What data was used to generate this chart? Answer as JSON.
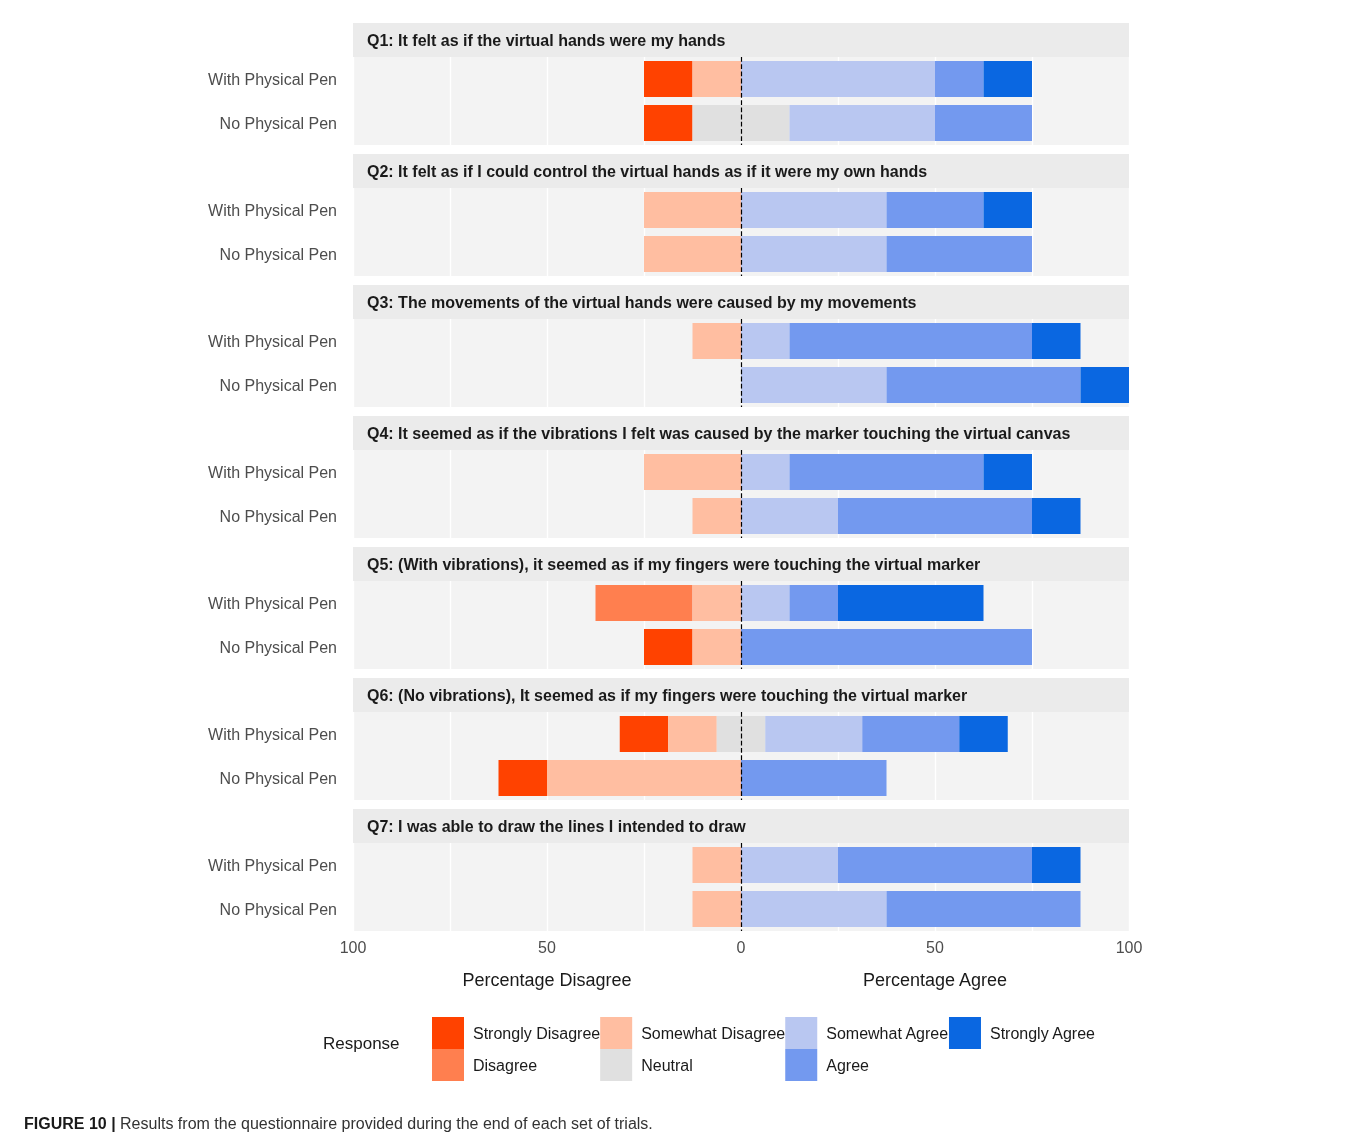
{
  "chart_data": [
    {
      "type": "bar",
      "orientation": "horizontal",
      "title": "Q1: It felt as if the virtual hands were my hands",
      "categories": [
        "With Physical Pen",
        "No Physical Pen"
      ],
      "xlim": [
        -100,
        100
      ],
      "xticks": [
        {
          "value": -100,
          "label": null
        },
        {
          "value": -75,
          "label": null
        },
        {
          "value": -50,
          "label": null
        },
        {
          "value": -25,
          "label": null
        },
        {
          "value": 0,
          "label": null
        },
        {
          "value": 25,
          "label": null
        },
        {
          "value": 50,
          "label": null
        },
        {
          "value": 75,
          "label": null
        },
        {
          "value": 100,
          "label": null
        }
      ],
      "tick_labels": "y",
      "grid": "x",
      "legend": false,
      "ref_lines": [
        {
          "axis": "x",
          "value": 0,
          "color": "#000000",
          "line_style": "dashed"
        }
      ],
      "series": [
        {
          "color": "#ff4200",
          "values": [
            -12.5,
            -12.5
          ],
          "base": [
            -12.5,
            -12.5
          ]
        },
        {
          "color": "#ff7f4f",
          "values": [
            null,
            null
          ],
          "base": [
            null,
            null
          ]
        },
        {
          "color": "#ffbea1",
          "values": [
            -12.5,
            null
          ],
          "base": [
            0,
            null
          ]
        },
        {
          "color": "#e0e0e0",
          "values": [
            null,
            25
          ],
          "base": [
            null,
            -12.5
          ]
        },
        {
          "color": "#b9c7f1",
          "values": [
            50,
            37.5
          ],
          "base": [
            0,
            12.5
          ]
        },
        {
          "color": "#7399ef",
          "values": [
            12.5,
            25
          ],
          "base": [
            50,
            50
          ]
        },
        {
          "color": "#0a67e1",
          "values": [
            12.5,
            null
          ],
          "base": [
            62.5,
            null
          ]
        }
      ]
    },
    {
      "type": "bar",
      "orientation": "horizontal",
      "title": "Q2: It felt as if I could control the virtual hands as if it were my own hands",
      "categories": [
        "With Physical Pen",
        "No Physical Pen"
      ],
      "xlim": [
        -100,
        100
      ],
      "xticks": [
        {
          "value": -100,
          "label": null
        },
        {
          "value": -75,
          "label": null
        },
        {
          "value": -50,
          "label": null
        },
        {
          "value": -25,
          "label": null
        },
        {
          "value": 0,
          "label": null
        },
        {
          "value": 25,
          "label": null
        },
        {
          "value": 50,
          "label": null
        },
        {
          "value": 75,
          "label": null
        },
        {
          "value": 100,
          "label": null
        }
      ],
      "tick_labels": "y",
      "grid": "x",
      "legend": false,
      "ref_lines": [
        {
          "axis": "x",
          "value": 0,
          "color": "#000000",
          "line_style": "dashed"
        }
      ],
      "series": [
        {
          "color": "#ff4200",
          "values": [
            null,
            null
          ],
          "base": [
            null,
            null
          ]
        },
        {
          "color": "#ff7f4f",
          "values": [
            null,
            null
          ],
          "base": [
            null,
            null
          ]
        },
        {
          "color": "#ffbea1",
          "values": [
            -25,
            -25
          ],
          "base": [
            0,
            0
          ]
        },
        {
          "color": "#e0e0e0",
          "values": [
            null,
            null
          ],
          "base": [
            null,
            null
          ]
        },
        {
          "color": "#b9c7f1",
          "values": [
            37.5,
            37.5
          ],
          "base": [
            0,
            0
          ]
        },
        {
          "color": "#7399ef",
          "values": [
            25,
            37.5
          ],
          "base": [
            37.5,
            37.5
          ]
        },
        {
          "color": "#0a67e1",
          "values": [
            12.5,
            null
          ],
          "base": [
            62.5,
            null
          ]
        }
      ]
    },
    {
      "type": "bar",
      "orientation": "horizontal",
      "title": "Q3: The movements of the virtual hands were caused by my movements",
      "categories": [
        "With Physical Pen",
        "No Physical Pen"
      ],
      "xlim": [
        -100,
        100
      ],
      "xticks": [
        {
          "value": -100,
          "label": null
        },
        {
          "value": -75,
          "label": null
        },
        {
          "value": -50,
          "label": null
        },
        {
          "value": -25,
          "label": null
        },
        {
          "value": 0,
          "label": null
        },
        {
          "value": 25,
          "label": null
        },
        {
          "value": 50,
          "label": null
        },
        {
          "value": 75,
          "label": null
        },
        {
          "value": 100,
          "label": null
        }
      ],
      "tick_labels": "y",
      "grid": "x",
      "legend": false,
      "ref_lines": [
        {
          "axis": "x",
          "value": 0,
          "color": "#000000",
          "line_style": "dashed"
        }
      ],
      "series": [
        {
          "color": "#ff4200",
          "values": [
            null,
            null
          ],
          "base": [
            null,
            null
          ]
        },
        {
          "color": "#ff7f4f",
          "values": [
            null,
            null
          ],
          "base": [
            null,
            null
          ]
        },
        {
          "color": "#ffbea1",
          "values": [
            -12.5,
            null
          ],
          "base": [
            0,
            null
          ]
        },
        {
          "color": "#e0e0e0",
          "values": [
            null,
            null
          ],
          "base": [
            null,
            null
          ]
        },
        {
          "color": "#b9c7f1",
          "values": [
            12.5,
            37.5
          ],
          "base": [
            0,
            0
          ]
        },
        {
          "color": "#7399ef",
          "values": [
            62.5,
            50
          ],
          "base": [
            12.5,
            37.5
          ]
        },
        {
          "color": "#0a67e1",
          "values": [
            12.5,
            12.5
          ],
          "base": [
            75,
            87.5
          ]
        }
      ]
    },
    {
      "type": "bar",
      "orientation": "horizontal",
      "title": "Q4: It seemed as if the vibrations I felt was caused by the marker touching the virtual canvas",
      "categories": [
        "With Physical Pen",
        "No Physical Pen"
      ],
      "xlim": [
        -100,
        100
      ],
      "xticks": [
        {
          "value": -100,
          "label": null
        },
        {
          "value": -75,
          "label": null
        },
        {
          "value": -50,
          "label": null
        },
        {
          "value": -25,
          "label": null
        },
        {
          "value": 0,
          "label": null
        },
        {
          "value": 25,
          "label": null
        },
        {
          "value": 50,
          "label": null
        },
        {
          "value": 75,
          "label": null
        },
        {
          "value": 100,
          "label": null
        }
      ],
      "tick_labels": "y",
      "grid": "x",
      "legend": false,
      "ref_lines": [
        {
          "axis": "x",
          "value": 0,
          "color": "#000000",
          "line_style": "dashed"
        }
      ],
      "series": [
        {
          "color": "#ff4200",
          "values": [
            null,
            null
          ],
          "base": [
            null,
            null
          ]
        },
        {
          "color": "#ff7f4f",
          "values": [
            null,
            null
          ],
          "base": [
            null,
            null
          ]
        },
        {
          "color": "#ffbea1",
          "values": [
            -25,
            -12.5
          ],
          "base": [
            0,
            0
          ]
        },
        {
          "color": "#e0e0e0",
          "values": [
            null,
            null
          ],
          "base": [
            null,
            null
          ]
        },
        {
          "color": "#b9c7f1",
          "values": [
            12.5,
            25
          ],
          "base": [
            0,
            0
          ]
        },
        {
          "color": "#7399ef",
          "values": [
            50,
            50
          ],
          "base": [
            12.5,
            25
          ]
        },
        {
          "color": "#0a67e1",
          "values": [
            12.5,
            12.5
          ],
          "base": [
            62.5,
            75
          ]
        }
      ]
    },
    {
      "type": "bar",
      "orientation": "horizontal",
      "title": "Q5: (With vibrations), it seemed as if my fingers were touching the virtual marker",
      "categories": [
        "With Physical Pen",
        "No Physical Pen"
      ],
      "xlim": [
        -100,
        100
      ],
      "xticks": [
        {
          "value": -100,
          "label": null
        },
        {
          "value": -75,
          "label": null
        },
        {
          "value": -50,
          "label": null
        },
        {
          "value": -25,
          "label": null
        },
        {
          "value": 0,
          "label": null
        },
        {
          "value": 25,
          "label": null
        },
        {
          "value": 50,
          "label": null
        },
        {
          "value": 75,
          "label": null
        },
        {
          "value": 100,
          "label": null
        }
      ],
      "tick_labels": "y",
      "grid": "x",
      "legend": false,
      "ref_lines": [
        {
          "axis": "x",
          "value": 0,
          "color": "#000000",
          "line_style": "dashed"
        }
      ],
      "series": [
        {
          "color": "#ff4200",
          "values": [
            null,
            -12.5
          ],
          "base": [
            null,
            -12.5
          ]
        },
        {
          "color": "#ff7f4f",
          "values": [
            -25,
            null
          ],
          "base": [
            -12.5,
            null
          ]
        },
        {
          "color": "#ffbea1",
          "values": [
            -12.5,
            -12.5
          ],
          "base": [
            0,
            0
          ]
        },
        {
          "color": "#e0e0e0",
          "values": [
            null,
            null
          ],
          "base": [
            null,
            null
          ]
        },
        {
          "color": "#b9c7f1",
          "values": [
            12.5,
            null
          ],
          "base": [
            0,
            null
          ]
        },
        {
          "color": "#7399ef",
          "values": [
            12.5,
            75
          ],
          "base": [
            12.5,
            0
          ]
        },
        {
          "color": "#0a67e1",
          "values": [
            37.5,
            null
          ],
          "base": [
            25,
            null
          ]
        }
      ]
    },
    {
      "type": "bar",
      "orientation": "horizontal",
      "title": "Q6: (No vibrations), It seemed as if my fingers were touching the virtual marker",
      "categories": [
        "With Physical Pen",
        "No Physical Pen"
      ],
      "xlim": [
        -100,
        100
      ],
      "xticks": [
        {
          "value": -100,
          "label": null
        },
        {
          "value": -75,
          "label": null
        },
        {
          "value": -50,
          "label": null
        },
        {
          "value": -25,
          "label": null
        },
        {
          "value": 0,
          "label": null
        },
        {
          "value": 25,
          "label": null
        },
        {
          "value": 50,
          "label": null
        },
        {
          "value": 75,
          "label": null
        },
        {
          "value": 100,
          "label": null
        }
      ],
      "tick_labels": "y",
      "grid": "x",
      "legend": false,
      "ref_lines": [
        {
          "axis": "x",
          "value": 0,
          "color": "#000000",
          "line_style": "dashed"
        }
      ],
      "series": [
        {
          "color": "#ff4200",
          "values": [
            -12.5,
            -12.5
          ],
          "base": [
            -18.75,
            -50
          ]
        },
        {
          "color": "#ff7f4f",
          "values": [
            null,
            null
          ],
          "base": [
            null,
            null
          ]
        },
        {
          "color": "#ffbea1",
          "values": [
            -12.5,
            -50
          ],
          "base": [
            -6.25,
            0
          ]
        },
        {
          "color": "#e0e0e0",
          "values": [
            12.5,
            null
          ],
          "base": [
            -6.25,
            null
          ]
        },
        {
          "color": "#b9c7f1",
          "values": [
            25,
            null
          ],
          "base": [
            6.25,
            null
          ]
        },
        {
          "color": "#7399ef",
          "values": [
            25,
            37.5
          ],
          "base": [
            31.25,
            0
          ]
        },
        {
          "color": "#0a67e1",
          "values": [
            12.5,
            null
          ],
          "base": [
            56.25,
            null
          ]
        }
      ]
    },
    {
      "type": "bar",
      "orientation": "horizontal",
      "title": "Q7: I was able to draw the lines I intended to draw",
      "categories": [
        "With Physical Pen",
        "No Physical Pen"
      ],
      "xlim": [
        -100,
        100
      ],
      "xticks": [
        {
          "value": -100,
          "label": "100"
        },
        {
          "value": -75,
          "label": null
        },
        {
          "value": -50,
          "label": "50"
        },
        {
          "value": -25,
          "label": null
        },
        0,
        {
          "value": 25,
          "label": null
        },
        50,
        {
          "value": 75,
          "label": null
        },
        100
      ],
      "grid": "x",
      "legend": "bottom",
      "legend_title": "Response",
      "annotations": [
        "Percentage Disagree",
        "Percentage Agree",
        "FIGURE 10 | Results from the questionnaire provided during the end of each set of trials."
      ],
      "ref_lines": [
        {
          "axis": "x",
          "value": 0,
          "color": "#000000",
          "line_style": "dashed"
        }
      ],
      "series": [
        {
          "name": "Strongly Disagree",
          "color": "#ff4200",
          "values": [
            null,
            null
          ],
          "base": [
            null,
            null
          ]
        },
        {
          "name": "Disagree",
          "color": "#ff7f4f",
          "values": [
            null,
            null
          ],
          "base": [
            null,
            null
          ]
        },
        {
          "name": "Somewhat Disagree",
          "color": "#ffbea1",
          "values": [
            -12.5,
            -12.5
          ],
          "base": [
            0,
            0
          ]
        },
        {
          "name": "Neutral",
          "color": "#e0e0e0",
          "values": [
            null,
            null
          ],
          "base": [
            null,
            null
          ]
        },
        {
          "name": "Somewhat Agree",
          "color": "#b9c7f1",
          "values": [
            25,
            37.5
          ],
          "base": [
            0,
            0
          ]
        },
        {
          "name": "Agree",
          "color": "#7399ef",
          "values": [
            50,
            50
          ],
          "base": [
            25,
            37.5
          ]
        },
        {
          "name": "Strongly Agree",
          "color": "#0a67e1",
          "values": [
            12.5,
            null
          ],
          "base": [
            75,
            null
          ]
        }
      ]
    }
  ]
}
